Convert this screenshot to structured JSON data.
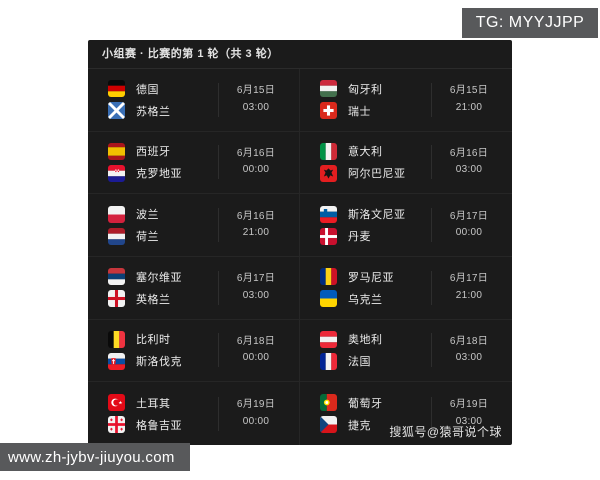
{
  "page": {
    "tg_badge": "TG: MYYJJPP",
    "watermark": "www.zh-jybv-jiuyou.com",
    "credit": "搜狐号@猿哥说个球"
  },
  "panel": {
    "header": "小组赛 · 比赛的第 1 轮（共 3 轮）"
  },
  "colors": {
    "page_bg": "#ffffff",
    "panel_bg": "#1b1b1b",
    "divider": "#262626",
    "badge_bg": "#58595b",
    "team_text": "#ececec",
    "time_text": "#c7c7c7"
  },
  "matches": [
    {
      "home": {
        "name": "德国",
        "flag": "de"
      },
      "away": {
        "name": "苏格兰",
        "flag": "sct"
      },
      "date": "6月15日",
      "time": "03:00"
    },
    {
      "home": {
        "name": "匈牙利",
        "flag": "hu"
      },
      "away": {
        "name": "瑞士",
        "flag": "ch"
      },
      "date": "6月15日",
      "time": "21:00"
    },
    {
      "home": {
        "name": "西班牙",
        "flag": "es"
      },
      "away": {
        "name": "克罗地亚",
        "flag": "hr"
      },
      "date": "6月16日",
      "time": "00:00"
    },
    {
      "home": {
        "name": "意大利",
        "flag": "it"
      },
      "away": {
        "name": "阿尔巴尼亚",
        "flag": "al"
      },
      "date": "6月16日",
      "time": "03:00"
    },
    {
      "home": {
        "name": "波兰",
        "flag": "pl"
      },
      "away": {
        "name": "荷兰",
        "flag": "nl"
      },
      "date": "6月16日",
      "time": "21:00"
    },
    {
      "home": {
        "name": "斯洛文尼亚",
        "flag": "si"
      },
      "away": {
        "name": "丹麦",
        "flag": "dk"
      },
      "date": "6月17日",
      "time": "00:00"
    },
    {
      "home": {
        "name": "塞尔维亚",
        "flag": "rs"
      },
      "away": {
        "name": "英格兰",
        "flag": "en"
      },
      "date": "6月17日",
      "time": "03:00"
    },
    {
      "home": {
        "name": "罗马尼亚",
        "flag": "ro"
      },
      "away": {
        "name": "乌克兰",
        "flag": "ua"
      },
      "date": "6月17日",
      "time": "21:00"
    },
    {
      "home": {
        "name": "比利时",
        "flag": "be"
      },
      "away": {
        "name": "斯洛伐克",
        "flag": "sk"
      },
      "date": "6月18日",
      "time": "00:00"
    },
    {
      "home": {
        "name": "奥地利",
        "flag": "at"
      },
      "away": {
        "name": "法国",
        "flag": "fr"
      },
      "date": "6月18日",
      "time": "03:00"
    },
    {
      "home": {
        "name": "土耳其",
        "flag": "tr"
      },
      "away": {
        "name": "格鲁吉亚",
        "flag": "ge"
      },
      "date": "6月19日",
      "time": "00:00"
    },
    {
      "home": {
        "name": "葡萄牙",
        "flag": "pt"
      },
      "away": {
        "name": "捷克",
        "flag": "cz"
      },
      "date": "6月19日",
      "time": "03:00"
    }
  ]
}
